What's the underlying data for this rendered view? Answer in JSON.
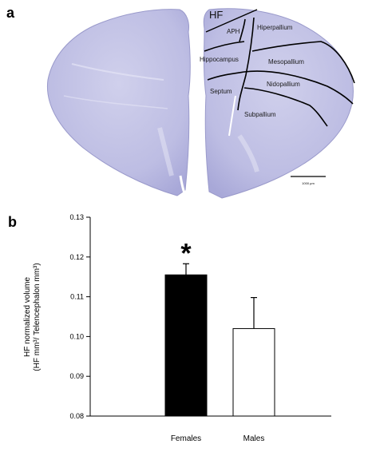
{
  "panel_a": {
    "label": "a",
    "hf_label": "HF",
    "regions": {
      "aph": "APH",
      "hiperpallium": "Hiperpallium",
      "hippocampus": "Hippocampus",
      "mesopallium": "Mesopallium",
      "septum": "Septum",
      "nidopallium": "Nidopallium",
      "subpallium": "Subpallium"
    },
    "scalebar_label": "1000 µm"
  },
  "panel_b": {
    "label": "b",
    "significance_marker": "*"
  },
  "chart_data": {
    "type": "bar",
    "categories": [
      "Females",
      "Males"
    ],
    "values": [
      0.1155,
      0.102
    ],
    "errors": [
      0.0028,
      0.0078
    ],
    "bar_colors": [
      "#000000",
      "#ffffff"
    ],
    "ylabel_line1": "HF normalized volume",
    "ylabel_line2": "(HF mm³/ Telencephalon mm³)",
    "xlabel": "",
    "title": "",
    "ylim": [
      0.08,
      0.13
    ],
    "yticks": [
      "0.08",
      "0.09",
      "0.10",
      "0.11",
      "0.12",
      "0.13"
    ],
    "grid": false
  },
  "colors": {
    "tissue": "#c5c5e6",
    "tissue_dark": "#a9a9d6",
    "lines": "#000000"
  }
}
